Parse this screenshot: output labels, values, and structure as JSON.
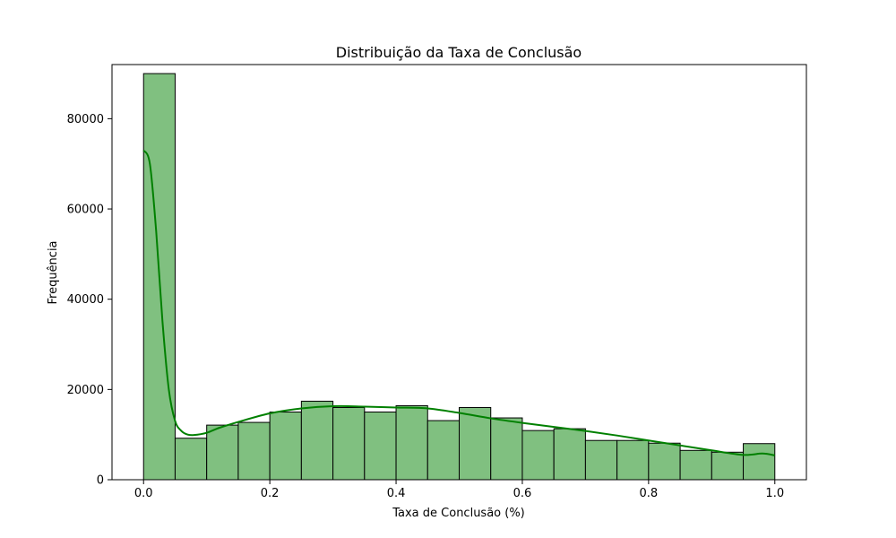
{
  "chart_data": {
    "type": "bar",
    "title": "Distribuição da Taxa de Conclusão",
    "xlabel": "Taxa de Conclusão (%)",
    "ylabel": "Frequência",
    "xlim": [
      -0.05,
      1.05
    ],
    "ylim": [
      0,
      92000
    ],
    "x_ticks": [
      0.0,
      0.2,
      0.4,
      0.6,
      0.8,
      1.0
    ],
    "x_tick_labels": [
      "0.0",
      "0.2",
      "0.4",
      "0.6",
      "0.8",
      "1.0"
    ],
    "y_ticks": [
      0,
      20000,
      40000,
      60000,
      80000
    ],
    "y_tick_labels": [
      "0",
      "20000",
      "40000",
      "60000",
      "80000"
    ],
    "bin_edges": [
      0.0,
      0.05,
      0.1,
      0.15,
      0.2,
      0.25,
      0.3,
      0.35,
      0.4,
      0.45,
      0.5,
      0.55,
      0.6,
      0.65,
      0.7,
      0.75,
      0.8,
      0.85,
      0.9,
      0.95,
      1.0
    ],
    "values": [
      90000,
      9200,
      12100,
      12700,
      15000,
      17400,
      16000,
      15000,
      16400,
      13100,
      16000,
      13700,
      10900,
      11300,
      8700,
      8700,
      8100,
      6500,
      6100,
      8000
    ],
    "kde": {
      "x": [
        0.0,
        0.01,
        0.02,
        0.03,
        0.04,
        0.05,
        0.06,
        0.07,
        0.08,
        0.1,
        0.12,
        0.15,
        0.2,
        0.25,
        0.3,
        0.35,
        0.4,
        0.45,
        0.5,
        0.55,
        0.6,
        0.65,
        0.7,
        0.75,
        0.8,
        0.85,
        0.9,
        0.95,
        0.98,
        1.0
      ],
      "y": [
        73000,
        70000,
        55000,
        35000,
        20000,
        13000,
        10800,
        10000,
        9900,
        10400,
        11500,
        12800,
        14700,
        15800,
        16300,
        16200,
        16000,
        15800,
        14800,
        13600,
        12600,
        11700,
        10800,
        9800,
        8700,
        7600,
        6500,
        5500,
        5800,
        5400
      ]
    },
    "colors": {
      "bar_fill": "#80c080",
      "bar_edge": "#000000",
      "kde_line": "#008000"
    },
    "grid": false,
    "legend": "none"
  }
}
